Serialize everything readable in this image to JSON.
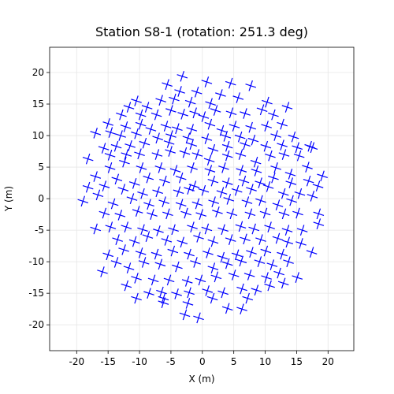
{
  "chart_data": {
    "type": "scatter",
    "title": "Station S8-1 (rotation: 251.3 deg)",
    "xlabel": "X (m)",
    "ylabel": "Y (m)",
    "color": "#0000ff",
    "marker": "+",
    "grid": true,
    "xlim": [
      -24.3,
      24.1
    ],
    "ylim": [
      -24.1,
      24
    ],
    "xticks": [
      -20,
      -15,
      -10,
      -5,
      0,
      5,
      10,
      15,
      20
    ],
    "yticks": [
      -20,
      -15,
      -10,
      -5,
      0,
      5,
      10,
      15,
      20
    ],
    "x": [
      -3.2,
      -5.6,
      0.7,
      4.5,
      7.7,
      -0.9,
      -3.6,
      -6.6,
      -4.5,
      -1.9,
      1.3,
      2.9,
      5.7,
      10.3,
      13.5,
      -10.5,
      -11.7,
      -8.8,
      -12.9,
      -9.8,
      -7.3,
      -5.0,
      -3.1,
      -1.2,
      0.2,
      2.1,
      4.6,
      6.8,
      9.5,
      11.3,
      -15.0,
      -12.2,
      -9.8,
      -8.2,
      -5.8,
      -4.0,
      -1.7,
      1.2,
      3.1,
      5.1,
      7.7,
      10.2,
      12.7,
      -17.0,
      -14.6,
      -13.0,
      -10.5,
      -7.1,
      -5.0,
      -2.3,
      0.7,
      3.7,
      6.0,
      8.1,
      11.7,
      14.5,
      17.1,
      -15.7,
      -13.7,
      -11.5,
      -9.2,
      -5.3,
      -1.7,
      1.7,
      4.0,
      6.8,
      10.1,
      12.7,
      15.1,
      17.5,
      -18.2,
      -14.7,
      -12.1,
      -10.0,
      -7.2,
      -5.1,
      -2.8,
      -0.8,
      1.1,
      4.0,
      6.1,
      8.5,
      10.8,
      13.0,
      15.4,
      16.7,
      -14.7,
      -12.4,
      -9.7,
      -6.7,
      -4.3,
      -1.6,
      1.2,
      3.4,
      6.2,
      8.6,
      11.7,
      14.0,
      19.1,
      -17.0,
      -13.6,
      -10.8,
      -8.6,
      -6.0,
      -3.4,
      -1.3,
      1.7,
      4.0,
      6.6,
      9.2,
      11.3,
      14.1,
      16.9,
      -18.2,
      -15.6,
      -12.6,
      -9.5,
      -7.1,
      -3.8,
      -2.1,
      0.2,
      3.1,
      5.5,
      7.8,
      10.5,
      12.9,
      15.5,
      18.4,
      -19.0,
      -16.6,
      -14.2,
      -11.2,
      -8.5,
      -6.1,
      -3.4,
      -0.8,
      1.8,
      4.2,
      7.1,
      9.3,
      12.0,
      14.2,
      17.5,
      -15.6,
      -13.1,
      -10.3,
      -8.0,
      -5.5,
      -2.6,
      -0.2,
      2.4,
      4.7,
      7.6,
      10.0,
      13.0,
      15.2,
      18.5,
      -17.0,
      -14.6,
      -12.1,
      -9.5,
      -7.0,
      -4.6,
      -1.6,
      0.7,
      3.3,
      6.1,
      8.2,
      10.7,
      13.5,
      15.9,
      18.5,
      -13.5,
      -10.8,
      -8.7,
      -5.7,
      -3.2,
      -0.6,
      1.7,
      4.5,
      6.8,
      9.3,
      12.0,
      13.6,
      15.7,
      -15.0,
      -12.5,
      -9.8,
      -7.3,
      -4.7,
      -2.1,
      0.9,
      3.2,
      5.5,
      7.8,
      10.1,
      12.7,
      17.4,
      -15.9,
      -13.7,
      -11.7,
      -9.3,
      -6.7,
      -4.0,
      -1.1,
      1.7,
      4.0,
      6.2,
      9.1,
      11.1,
      13.7,
      -12.1,
      -10.5,
      -7.8,
      -5.3,
      -2.4,
      -0.3,
      2.2,
      5.0,
      7.5,
      10.2,
      12.2,
      15.1,
      -10.5,
      -8.5,
      -6.2,
      -4.1,
      -2.1,
      0.8,
      3.3,
      6.3,
      8.6,
      10.7,
      12.9,
      -2.8,
      -0.6,
      1.6,
      4.0,
      6.3,
      7.2,
      -2.3,
      -6.2,
      -6.5
    ],
    "y": [
      19.4,
      18.1,
      18.5,
      18.3,
      17.9,
      16.9,
      17.0,
      15.6,
      15.8,
      15.3,
      15.1,
      16.5,
      16.0,
      15.3,
      14.5,
      15.5,
      14.5,
      14.5,
      13.3,
      13.3,
      13.3,
      14.0,
      13.4,
      13.6,
      13.0,
      14.0,
      13.6,
      13.5,
      14.1,
      13.3,
      11.9,
      11.4,
      11.8,
      11.0,
      11.5,
      11.1,
      11.0,
      11.8,
      10.8,
      11.5,
      11.3,
      11.5,
      11.8,
      10.4,
      10.5,
      10.0,
      10.3,
      9.6,
      10.0,
      9.6,
      9.5,
      9.9,
      9.8,
      9.3,
      10.0,
      9.8,
      8.3,
      8.0,
      8.3,
      8.4,
      8.8,
      8.9,
      8.6,
      7.8,
      8.3,
      8.6,
      8.3,
      8.5,
      8.1,
      8.1,
      6.3,
      6.9,
      7.0,
      7.1,
      7.0,
      7.5,
      7.3,
      7.0,
      6.1,
      6.8,
      7.0,
      5.8,
      6.8,
      7.0,
      6.8,
      5.0,
      4.9,
      5.8,
      4.9,
      4.9,
      4.5,
      4.9,
      4.5,
      4.9,
      4.5,
      4.4,
      4.9,
      3.9,
      3.6,
      3.5,
      3.1,
      2.4,
      3.3,
      2.8,
      3.3,
      2.0,
      2.8,
      2.5,
      2.8,
      2.5,
      3.3,
      2.5,
      2.8,
      1.8,
      2.0,
      1.5,
      0.8,
      1.1,
      1.1,
      1.5,
      1.3,
      1.0,
      1.3,
      1.5,
      1.9,
      0.8,
      0.8,
      2.0,
      -0.4,
      0.6,
      -0.8,
      0.0,
      -0.9,
      -0.5,
      -0.9,
      -0.8,
      -0.5,
      -0.1,
      -0.5,
      -0.3,
      -1.0,
      -0.3,
      0.4,
      -2.3,
      -2.6,
      -2.0,
      -2.5,
      -2.4,
      -2.3,
      -2.5,
      -2.1,
      -2.4,
      -2.4,
      -2.3,
      -2.4,
      -2.3,
      -2.4,
      -4.8,
      -4.5,
      -4.5,
      -4.9,
      -5.1,
      -4.9,
      -4.5,
      -4.8,
      -4.9,
      -4.4,
      -4.8,
      -4.5,
      -5.0,
      -5.0,
      -4.0,
      -6.5,
      -6.8,
      -6.0,
      -6.6,
      -6.9,
      -6.1,
      -6.8,
      -6.5,
      -6.4,
      -6.5,
      -6.3,
      -6.9,
      -7.1,
      -8.9,
      -8.1,
      -8.6,
      -8.8,
      -8.3,
      -8.8,
      -8.6,
      -9.3,
      -8.9,
      -8.5,
      -8.3,
      -8.8,
      -8.5,
      -11.6,
      -10.1,
      -11.0,
      -10.1,
      -10.4,
      -10.8,
      -10.1,
      -11.0,
      -10.3,
      -9.9,
      -10.0,
      -10.5,
      -10.0,
      -13.8,
      -12.6,
      -12.9,
      -12.9,
      -13.1,
      -12.9,
      -12.4,
      -12.1,
      -12.1,
      -12.5,
      -11.8,
      -12.5,
      -15.8,
      -15.0,
      -15.8,
      -15.1,
      -14.9,
      -14.6,
      -14.9,
      -14.3,
      -14.5,
      -13.8,
      -13.4,
      -18.4,
      -18.9,
      -15.8,
      -17.4,
      -17.5,
      -15.8,
      -16.6,
      -16.5,
      -14.8
    ]
  }
}
